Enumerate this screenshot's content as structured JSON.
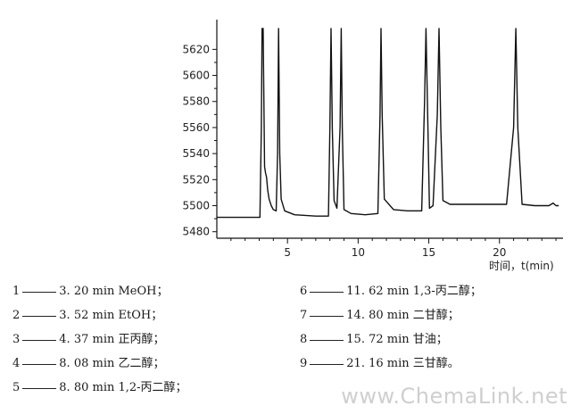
{
  "chart_data": {
    "type": "line",
    "title": "",
    "xlabel": "时间，t(min)",
    "ylabel": "",
    "xlim": [
      0,
      24.5
    ],
    "ylim": [
      5475,
      5636
    ],
    "x_ticks": [
      5,
      10,
      15,
      20
    ],
    "y_ticks": [
      5480,
      5500,
      5520,
      5540,
      5560,
      5580,
      5600,
      5620
    ],
    "grid": false,
    "series": [
      {
        "x": [
          0,
          3.05,
          3.15,
          3.2,
          3.28,
          3.38,
          3.45,
          3.52,
          3.6,
          3.7,
          3.85,
          4.0,
          4.2,
          4.3,
          4.37,
          4.45,
          4.55,
          4.8,
          5.5,
          7.0,
          7.9,
          8.0,
          8.08,
          8.17,
          8.3,
          8.5,
          8.72,
          8.8,
          8.88,
          9.0,
          9.5,
          10.5,
          11.4,
          11.55,
          11.62,
          11.7,
          11.85,
          12.5,
          13.5,
          14.5,
          14.7,
          14.8,
          14.9,
          15.05,
          15.3,
          15.6,
          15.72,
          15.85,
          16.0,
          16.5,
          17.5,
          19.0,
          20.5,
          21.0,
          21.16,
          21.3,
          21.6,
          22.5,
          23.5,
          23.8,
          24.0,
          24.2
        ],
        "y": [
          5491,
          5491,
          5560,
          5636,
          5636,
          5530,
          5525,
          5522,
          5512,
          5505,
          5500,
          5497,
          5496,
          5540,
          5636,
          5540,
          5505,
          5496,
          5493,
          5492,
          5492,
          5560,
          5636,
          5560,
          5504,
          5498,
          5560,
          5636,
          5560,
          5497,
          5494,
          5493,
          5494,
          5570,
          5636,
          5570,
          5505,
          5497,
          5496,
          5496,
          5580,
          5636,
          5580,
          5498,
          5500,
          5570,
          5636,
          5560,
          5504,
          5501,
          5501,
          5501,
          5501,
          5560,
          5636,
          5560,
          5501,
          5500,
          5500,
          5502,
          5500,
          5500
        ]
      }
    ]
  },
  "legend_left": [
    {
      "num": "1",
      "text": "3. 20 min MeOH；"
    },
    {
      "num": "2",
      "text": "3. 52 min EtOH；"
    },
    {
      "num": "3",
      "text": "4. 37 min 正丙醇；"
    },
    {
      "num": "4",
      "text": "8. 08 min 乙二醇；"
    },
    {
      "num": "5",
      "text": "8. 80 min 1,2-丙二醇；"
    }
  ],
  "legend_right": [
    {
      "num": "6",
      "text": "11. 62 min 1,3-丙二醇；"
    },
    {
      "num": "7",
      "text": "14. 80 min 二甘醇；"
    },
    {
      "num": "8",
      "text": "15. 72 min 甘油；"
    },
    {
      "num": "9",
      "text": "21. 16 min 三甘醇。"
    }
  ],
  "watermark": "www.ChemaLink.net"
}
